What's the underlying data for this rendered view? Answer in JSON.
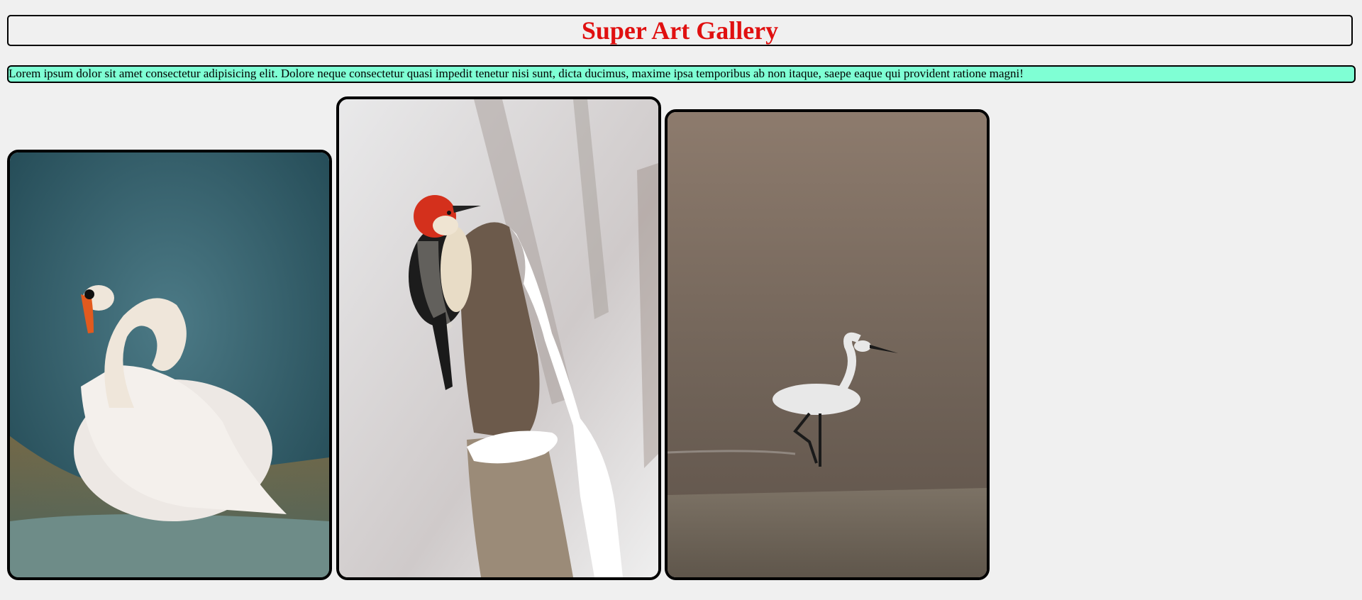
{
  "header": {
    "title": "Super Art Gallery",
    "title_color": "#e01010"
  },
  "intro": {
    "text": "Lorem ipsum dolor sit amet consectetur adipisicing elit. Dolore neque consectetur quasi impedit tenetur nisi sunt, dicta ducimus, maxime ipsa temporibus ab non itaque, saepe eaque qui provident ratione magni!",
    "background": "#7fffd4"
  },
  "gallery": {
    "items": [
      {
        "subject": "swan-photo"
      },
      {
        "subject": "woodpecker-photo"
      },
      {
        "subject": "egret-photo"
      }
    ]
  }
}
